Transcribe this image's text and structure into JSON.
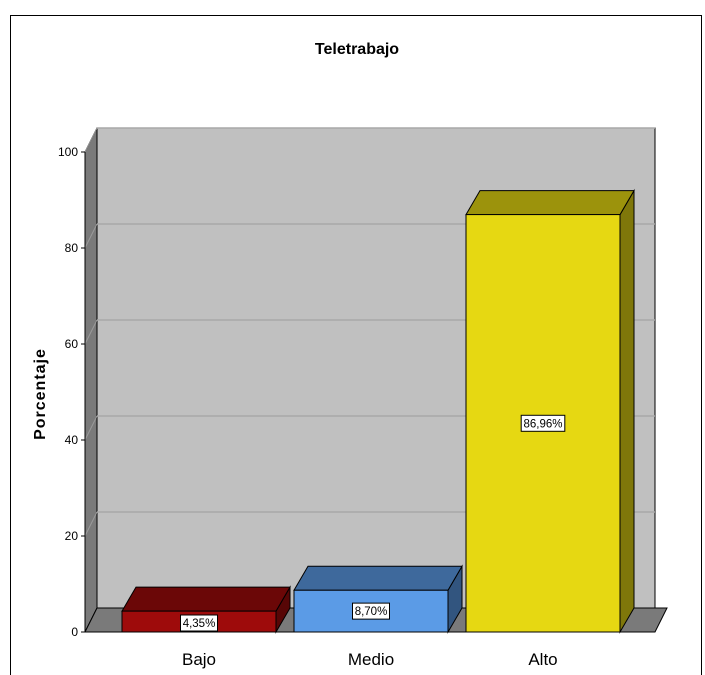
{
  "chart_data": {
    "type": "bar",
    "title": "Teletrabajo",
    "xlabel": "",
    "ylabel": "Porcentaje",
    "categories": [
      "Bajo",
      "Medio",
      "Alto"
    ],
    "values": [
      4.35,
      8.7,
      86.96
    ],
    "data_labels": [
      "4,35%",
      "8,70%",
      "86,96%"
    ],
    "colors": [
      "#9e0b0b",
      "#5b9be6",
      "#e6d812"
    ],
    "ylim": [
      0,
      100
    ],
    "yticks": [
      0,
      20,
      40,
      60,
      80,
      100
    ],
    "grid": true,
    "style": "3d",
    "background_color": "#c0c0c0"
  }
}
